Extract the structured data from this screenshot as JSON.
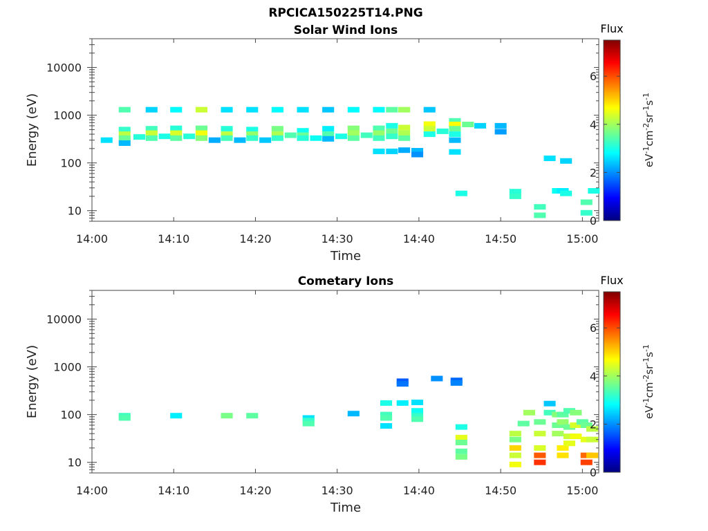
{
  "figure": {
    "title": "RPCICA150225T14.PNG"
  },
  "colorbar": {
    "label": "Flux",
    "range": [
      0,
      7.5
    ],
    "ticks": [
      "0",
      "2",
      "4",
      "6"
    ],
    "unit_base": "eV",
    "unit_parts": [
      {
        "text": "eV",
        "sup": "-1"
      },
      {
        "text": "cm",
        "sup": "-2"
      },
      {
        "text": "sr",
        "sup": "-1"
      },
      {
        "text": "s",
        "sup": "-1"
      }
    ],
    "colormap": "jet"
  },
  "chart_data": [
    {
      "type": "heatmap",
      "title": "Solar Wind Ions",
      "xlabel": "Time",
      "ylabel": "Energy (eV)",
      "xlim": [
        "14:00",
        "15:02"
      ],
      "xticks": [
        "14:00",
        "14:10",
        "14:20",
        "14:30",
        "14:40",
        "14:50",
        "15:00"
      ],
      "ylim": [
        6,
        40000
      ],
      "yscale": "log",
      "yticks": [
        "10",
        "100",
        "1000",
        "10000"
      ],
      "points": [
        {
          "t": 1.8,
          "e": 300,
          "v": 2.6
        },
        {
          "t": 4.0,
          "e": 1300,
          "v": 3.4
        },
        {
          "t": 4.0,
          "e": 500,
          "v": 3.2
        },
        {
          "t": 4.0,
          "e": 400,
          "v": 4.2
        },
        {
          "t": 4.0,
          "e": 330,
          "v": 3.6
        },
        {
          "t": 4.0,
          "e": 260,
          "v": 2.3
        },
        {
          "t": 5.8,
          "e": 350,
          "v": 3.1
        },
        {
          "t": 7.3,
          "e": 1300,
          "v": 2.5
        },
        {
          "t": 7.3,
          "e": 520,
          "v": 3.3
        },
        {
          "t": 7.3,
          "e": 420,
          "v": 4.3
        },
        {
          "t": 7.3,
          "e": 330,
          "v": 3.4
        },
        {
          "t": 8.9,
          "e": 360,
          "v": 3.0
        },
        {
          "t": 10.3,
          "e": 1300,
          "v": 2.8
        },
        {
          "t": 10.3,
          "e": 530,
          "v": 3.1
        },
        {
          "t": 10.3,
          "e": 420,
          "v": 4.4
        },
        {
          "t": 10.3,
          "e": 330,
          "v": 3.5
        },
        {
          "t": 11.9,
          "e": 360,
          "v": 3.1
        },
        {
          "t": 13.4,
          "e": 1300,
          "v": 4.3
        },
        {
          "t": 13.4,
          "e": 530,
          "v": 3.6
        },
        {
          "t": 13.4,
          "e": 420,
          "v": 4.6
        },
        {
          "t": 13.4,
          "e": 330,
          "v": 3.8
        },
        {
          "t": 15.0,
          "e": 300,
          "v": 2.2
        },
        {
          "t": 16.5,
          "e": 1300,
          "v": 2.6
        },
        {
          "t": 16.5,
          "e": 520,
          "v": 3.1
        },
        {
          "t": 16.5,
          "e": 400,
          "v": 4.2
        },
        {
          "t": 16.5,
          "e": 330,
          "v": 3.3
        },
        {
          "t": 18.1,
          "e": 300,
          "v": 2.3
        },
        {
          "t": 19.6,
          "e": 1300,
          "v": 2.6
        },
        {
          "t": 19.6,
          "e": 500,
          "v": 3.0
        },
        {
          "t": 19.6,
          "e": 400,
          "v": 3.9
        },
        {
          "t": 19.6,
          "e": 330,
          "v": 3.2
        },
        {
          "t": 21.2,
          "e": 300,
          "v": 2.4
        },
        {
          "t": 22.7,
          "e": 1300,
          "v": 2.8
        },
        {
          "t": 22.7,
          "e": 520,
          "v": 3.7
        },
        {
          "t": 22.7,
          "e": 400,
          "v": 4.1
        },
        {
          "t": 22.7,
          "e": 330,
          "v": 3.2
        },
        {
          "t": 24.3,
          "e": 380,
          "v": 3.4
        },
        {
          "t": 25.8,
          "e": 1300,
          "v": 2.6
        },
        {
          "t": 25.8,
          "e": 470,
          "v": 2.9
        },
        {
          "t": 25.8,
          "e": 380,
          "v": 3.6
        },
        {
          "t": 25.8,
          "e": 330,
          "v": 3.1
        },
        {
          "t": 27.4,
          "e": 330,
          "v": 2.9
        },
        {
          "t": 28.9,
          "e": 1300,
          "v": 2.4
        },
        {
          "t": 28.9,
          "e": 520,
          "v": 2.7
        },
        {
          "t": 28.9,
          "e": 400,
          "v": 3.4
        },
        {
          "t": 28.9,
          "e": 320,
          "v": 2.3
        },
        {
          "t": 30.5,
          "e": 360,
          "v": 3.0
        },
        {
          "t": 32.0,
          "e": 1300,
          "v": 2.8
        },
        {
          "t": 32.0,
          "e": 530,
          "v": 3.8
        },
        {
          "t": 32.0,
          "e": 420,
          "v": 4.0
        },
        {
          "t": 32.0,
          "e": 330,
          "v": 3.5
        },
        {
          "t": 33.6,
          "e": 380,
          "v": 3.3
        },
        {
          "t": 35.1,
          "e": 1300,
          "v": 2.8
        },
        {
          "t": 35.1,
          "e": 530,
          "v": 3.4
        },
        {
          "t": 35.1,
          "e": 420,
          "v": 3.9
        },
        {
          "t": 35.1,
          "e": 330,
          "v": 3.3
        },
        {
          "t": 35.1,
          "e": 175,
          "v": 2.6
        },
        {
          "t": 36.7,
          "e": 1300,
          "v": 3.5
        },
        {
          "t": 36.7,
          "e": 600,
          "v": 3.0
        },
        {
          "t": 36.7,
          "e": 460,
          "v": 3.6
        },
        {
          "t": 36.7,
          "e": 360,
          "v": 3.2
        },
        {
          "t": 36.7,
          "e": 175,
          "v": 2.5
        },
        {
          "t": 38.2,
          "e": 1300,
          "v": 4.0
        },
        {
          "t": 38.2,
          "e": 550,
          "v": 4.3
        },
        {
          "t": 38.2,
          "e": 420,
          "v": 4.1
        },
        {
          "t": 38.2,
          "e": 330,
          "v": 3.5
        },
        {
          "t": 38.2,
          "e": 185,
          "v": 2.2
        },
        {
          "t": 39.8,
          "e": 180,
          "v": 2.3
        },
        {
          "t": 39.8,
          "e": 150,
          "v": 2.0
        },
        {
          "t": 41.3,
          "e": 1300,
          "v": 2.4
        },
        {
          "t": 41.3,
          "e": 650,
          "v": 4.6
        },
        {
          "t": 41.3,
          "e": 520,
          "v": 4.3
        },
        {
          "t": 41.3,
          "e": 400,
          "v": 3.0
        },
        {
          "t": 42.9,
          "e": 460,
          "v": 3.1
        },
        {
          "t": 44.4,
          "e": 760,
          "v": 3.4
        },
        {
          "t": 44.4,
          "e": 640,
          "v": 4.7
        },
        {
          "t": 44.4,
          "e": 520,
          "v": 3.6
        },
        {
          "t": 44.4,
          "e": 400,
          "v": 3.0
        },
        {
          "t": 44.4,
          "e": 300,
          "v": 2.3
        },
        {
          "t": 44.4,
          "e": 170,
          "v": 2.6
        },
        {
          "t": 45.2,
          "e": 23,
          "v": 3.0
        },
        {
          "t": 46.0,
          "e": 640,
          "v": 3.6
        },
        {
          "t": 47.5,
          "e": 600,
          "v": 2.5
        },
        {
          "t": 50.0,
          "e": 600,
          "v": 2.3
        },
        {
          "t": 50.0,
          "e": 450,
          "v": 2.1
        },
        {
          "t": 51.8,
          "e": 25,
          "v": 3.1
        },
        {
          "t": 51.8,
          "e": 20,
          "v": 3.2
        },
        {
          "t": 54.8,
          "e": 12,
          "v": 3.3
        },
        {
          "t": 54.8,
          "e": 8,
          "v": 3.4
        },
        {
          "t": 56.0,
          "e": 125,
          "v": 2.6
        },
        {
          "t": 57.0,
          "e": 26,
          "v": 2.9
        },
        {
          "t": 57.6,
          "e": 26,
          "v": 2.7
        },
        {
          "t": 58.0,
          "e": 110,
          "v": 2.5
        },
        {
          "t": 58.0,
          "e": 23,
          "v": 3.0
        },
        {
          "t": 60.5,
          "e": 15,
          "v": 3.4
        },
        {
          "t": 60.5,
          "e": 9,
          "v": 3.2
        },
        {
          "t": 61.4,
          "e": 26,
          "v": 3.0
        }
      ]
    },
    {
      "type": "heatmap",
      "title": "Cometary Ions",
      "xlabel": "Time",
      "ylabel": "Energy (eV)",
      "xlim": [
        "14:00",
        "15:02"
      ],
      "xticks": [
        "14:00",
        "14:10",
        "14:20",
        "14:30",
        "14:40",
        "14:50",
        "15:00"
      ],
      "ylim": [
        6,
        40000
      ],
      "yscale": "log",
      "yticks": [
        "10",
        "100",
        "1000",
        "10000"
      ],
      "points": [
        {
          "t": 4.0,
          "e": 95,
          "v": 3.3
        },
        {
          "t": 4.0,
          "e": 85,
          "v": 3.4
        },
        {
          "t": 10.3,
          "e": 95,
          "v": 2.7
        },
        {
          "t": 16.5,
          "e": 95,
          "v": 3.7
        },
        {
          "t": 19.6,
          "e": 95,
          "v": 3.5
        },
        {
          "t": 26.5,
          "e": 85,
          "v": 2.6
        },
        {
          "t": 26.5,
          "e": 75,
          "v": 3.2
        },
        {
          "t": 26.5,
          "e": 65,
          "v": 3.4
        },
        {
          "t": 32.0,
          "e": 105,
          "v": 2.3
        },
        {
          "t": 36.0,
          "e": 175,
          "v": 3.0
        },
        {
          "t": 36.0,
          "e": 100,
          "v": 3.3
        },
        {
          "t": 36.0,
          "e": 85,
          "v": 3.4
        },
        {
          "t": 36.0,
          "e": 58,
          "v": 2.6
        },
        {
          "t": 38.0,
          "e": 500,
          "v": 1.6
        },
        {
          "t": 38.0,
          "e": 440,
          "v": 1.8
        },
        {
          "t": 38.0,
          "e": 175,
          "v": 2.7
        },
        {
          "t": 39.8,
          "e": 180,
          "v": 2.6
        },
        {
          "t": 39.8,
          "e": 120,
          "v": 2.9
        },
        {
          "t": 39.8,
          "e": 95,
          "v": 3.2
        },
        {
          "t": 39.8,
          "e": 80,
          "v": 3.4
        },
        {
          "t": 42.2,
          "e": 570,
          "v": 2.0
        },
        {
          "t": 44.6,
          "e": 520,
          "v": 1.7
        },
        {
          "t": 44.6,
          "e": 460,
          "v": 1.9
        },
        {
          "t": 45.2,
          "e": 55,
          "v": 3.0
        },
        {
          "t": 45.2,
          "e": 33,
          "v": 4.5
        },
        {
          "t": 45.2,
          "e": 26,
          "v": 3.6
        },
        {
          "t": 45.2,
          "e": 17,
          "v": 3.5
        },
        {
          "t": 45.2,
          "e": 13,
          "v": 3.7
        },
        {
          "t": 51.8,
          "e": 40,
          "v": 4.2
        },
        {
          "t": 51.8,
          "e": 30,
          "v": 3.7
        },
        {
          "t": 51.8,
          "e": 20,
          "v": 5.0
        },
        {
          "t": 51.8,
          "e": 14,
          "v": 4.3
        },
        {
          "t": 51.8,
          "e": 9,
          "v": 4.6
        },
        {
          "t": 52.8,
          "e": 65,
          "v": 3.5
        },
        {
          "t": 53.5,
          "e": 110,
          "v": 4.0
        },
        {
          "t": 54.8,
          "e": 70,
          "v": 3.6
        },
        {
          "t": 54.8,
          "e": 40,
          "v": 4.3
        },
        {
          "t": 54.8,
          "e": 20,
          "v": 4.4
        },
        {
          "t": 54.8,
          "e": 14,
          "v": 5.9
        },
        {
          "t": 54.8,
          "e": 10,
          "v": 6.2
        },
        {
          "t": 56.0,
          "e": 170,
          "v": 2.4
        },
        {
          "t": 56.0,
          "e": 110,
          "v": 3.3
        },
        {
          "t": 57.0,
          "e": 100,
          "v": 3.8
        },
        {
          "t": 57.0,
          "e": 60,
          "v": 3.6
        },
        {
          "t": 57.0,
          "e": 40,
          "v": 4.0
        },
        {
          "t": 57.6,
          "e": 100,
          "v": 3.5
        },
        {
          "t": 57.6,
          "e": 70,
          "v": 3.9
        },
        {
          "t": 57.6,
          "e": 20,
          "v": 4.8
        },
        {
          "t": 57.6,
          "e": 14,
          "v": 4.9
        },
        {
          "t": 58.4,
          "e": 120,
          "v": 3.4
        },
        {
          "t": 58.4,
          "e": 55,
          "v": 3.6
        },
        {
          "t": 58.4,
          "e": 35,
          "v": 4.3
        },
        {
          "t": 58.4,
          "e": 25,
          "v": 4.5
        },
        {
          "t": 59.2,
          "e": 110,
          "v": 3.8
        },
        {
          "t": 59.2,
          "e": 60,
          "v": 4.4
        },
        {
          "t": 59.2,
          "e": 35,
          "v": 4.6
        },
        {
          "t": 60.0,
          "e": 70,
          "v": 3.5
        },
        {
          "t": 60.5,
          "e": 60,
          "v": 3.6
        },
        {
          "t": 60.5,
          "e": 30,
          "v": 4.5
        },
        {
          "t": 60.5,
          "e": 14,
          "v": 5.8
        },
        {
          "t": 60.5,
          "e": 10,
          "v": 6.1
        },
        {
          "t": 61.2,
          "e": 50,
          "v": 4.2
        },
        {
          "t": 61.2,
          "e": 30,
          "v": 4.3
        },
        {
          "t": 61.2,
          "e": 14,
          "v": 5.1
        }
      ]
    }
  ]
}
